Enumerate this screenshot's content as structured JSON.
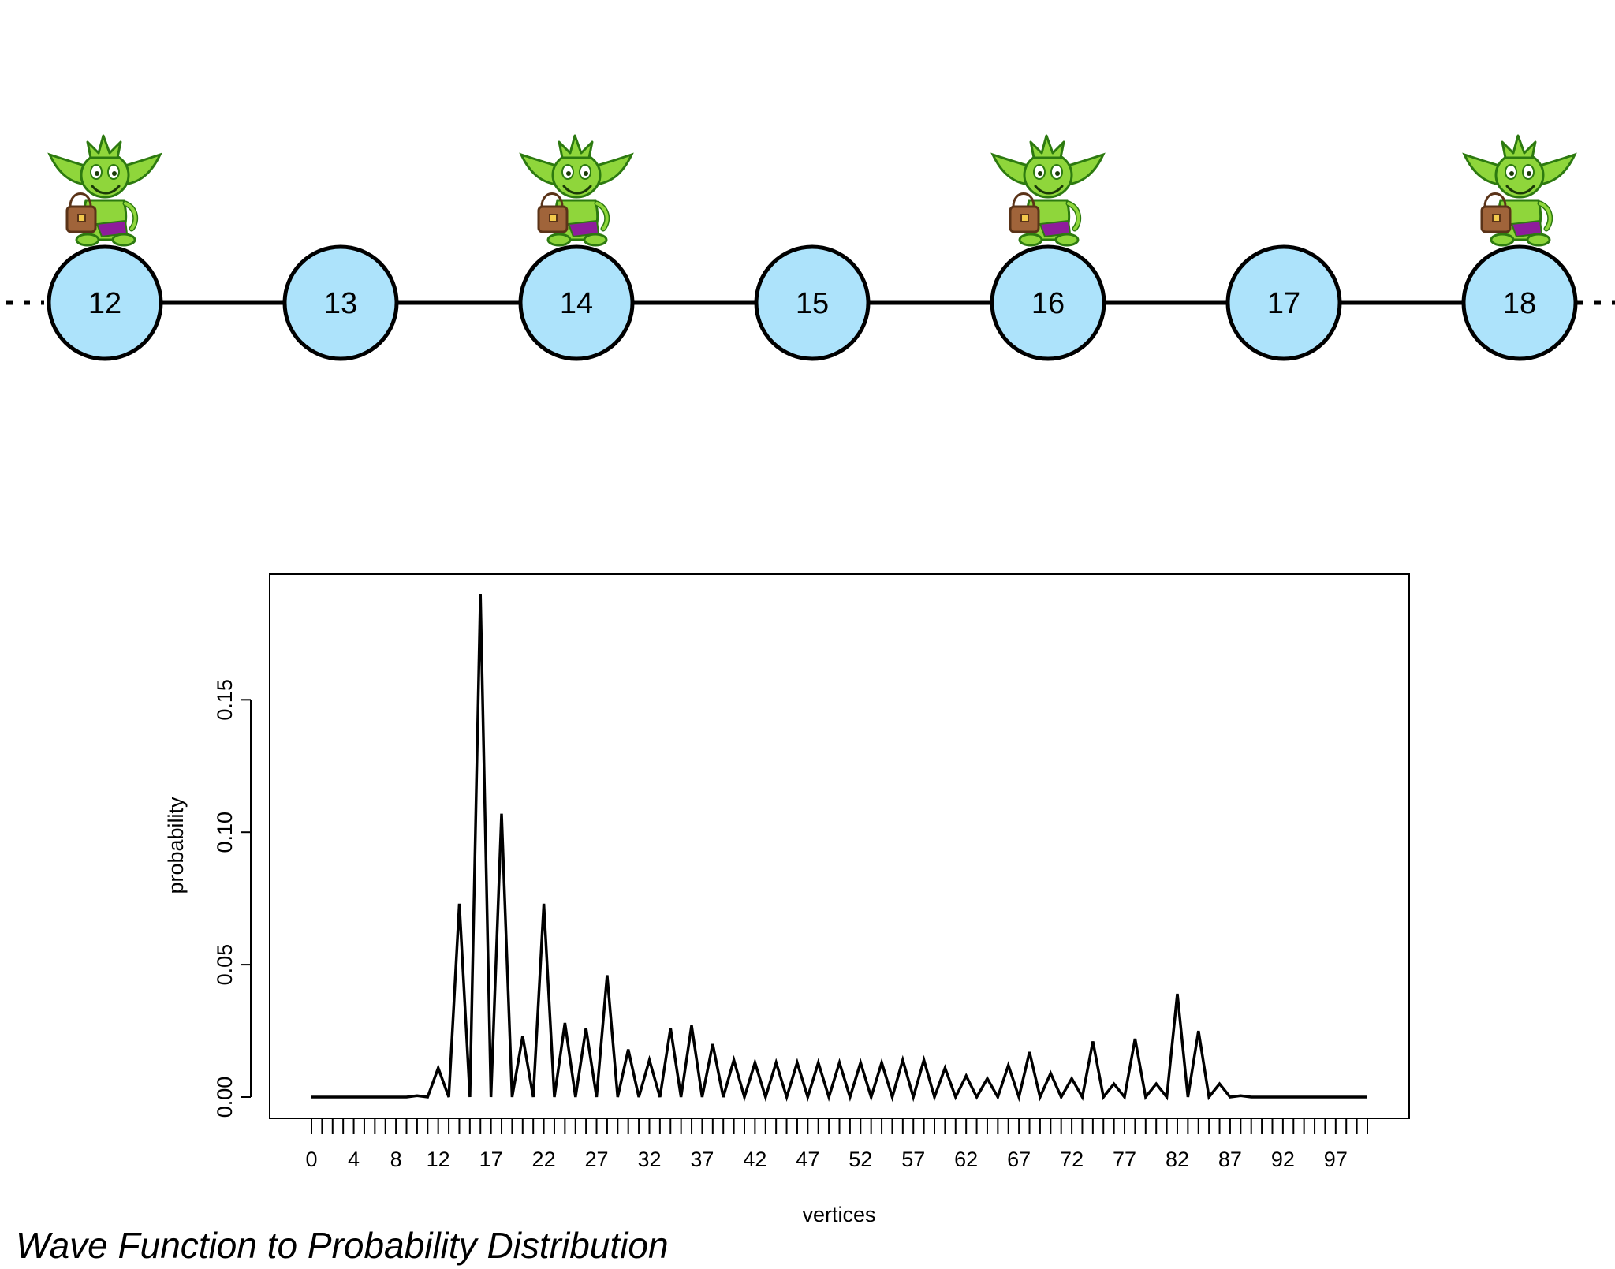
{
  "caption": "Wave Function to Probability Distribution",
  "graph": {
    "nodes": [
      "12",
      "13",
      "14",
      "15",
      "16",
      "17",
      "18"
    ],
    "goblin_nodes": [
      "12",
      "14",
      "16",
      "18"
    ],
    "node_fill": "#ade3fb",
    "node_stroke": "#000000",
    "goblin_colors": {
      "skin": "#8fd63b",
      "outline": "#2d7a10",
      "bag": "#a0643a",
      "shorts": "#8e1d9c"
    }
  },
  "chart_data": {
    "type": "line",
    "xlabel": "vertices",
    "ylabel": "probability",
    "ylim": [
      0,
      0.19
    ],
    "yticks": [
      "0.00",
      "0.05",
      "0.10",
      "0.15"
    ],
    "xtick_labels": [
      "0",
      "4",
      "8",
      "12",
      "17",
      "22",
      "27",
      "32",
      "37",
      "42",
      "47",
      "52",
      "57",
      "62",
      "67",
      "72",
      "77",
      "82",
      "87",
      "92",
      "97"
    ],
    "x": [
      0,
      1,
      2,
      3,
      4,
      5,
      6,
      7,
      8,
      9,
      10,
      11,
      12,
      13,
      14,
      15,
      16,
      17,
      18,
      19,
      20,
      21,
      22,
      23,
      24,
      25,
      26,
      27,
      28,
      29,
      30,
      31,
      32,
      33,
      34,
      35,
      36,
      37,
      38,
      39,
      40,
      41,
      42,
      43,
      44,
      45,
      46,
      47,
      48,
      49,
      50,
      51,
      52,
      53,
      54,
      55,
      56,
      57,
      58,
      59,
      60,
      61,
      62,
      63,
      64,
      65,
      66,
      67,
      68,
      69,
      70,
      71,
      72,
      73,
      74,
      75,
      76,
      77,
      78,
      79,
      80,
      81,
      82,
      83,
      84,
      85,
      86,
      87,
      88,
      89,
      90,
      91,
      92,
      93,
      94,
      95,
      96,
      97,
      98,
      99,
      100
    ],
    "values": [
      0,
      0,
      0,
      0,
      0,
      0,
      0,
      0,
      0,
      0,
      0.0005,
      0,
      0.011,
      0,
      0.073,
      0,
      0.19,
      0,
      0.107,
      0,
      0.023,
      0,
      0.073,
      0,
      0.028,
      0,
      0.026,
      0,
      0.046,
      0,
      0.018,
      0,
      0.014,
      0,
      0.026,
      0,
      0.027,
      0,
      0.02,
      0,
      0.014,
      0,
      0.013,
      0,
      0.013,
      0,
      0.013,
      0,
      0.013,
      0,
      0.013,
      0,
      0.013,
      0,
      0.013,
      0,
      0.014,
      0,
      0.014,
      0,
      0.011,
      0,
      0.008,
      0,
      0.007,
      0,
      0.012,
      0,
      0.017,
      0,
      0.009,
      0,
      0.007,
      0,
      0.021,
      0,
      0.005,
      0,
      0.022,
      0,
      0.005,
      0,
      0.039,
      0,
      0.025,
      0,
      0.005,
      0,
      0.0005,
      0,
      0,
      0,
      0,
      0,
      0,
      0,
      0,
      0,
      0,
      0,
      0
    ],
    "line_color": "#000000",
    "grid": false,
    "legend": false
  }
}
